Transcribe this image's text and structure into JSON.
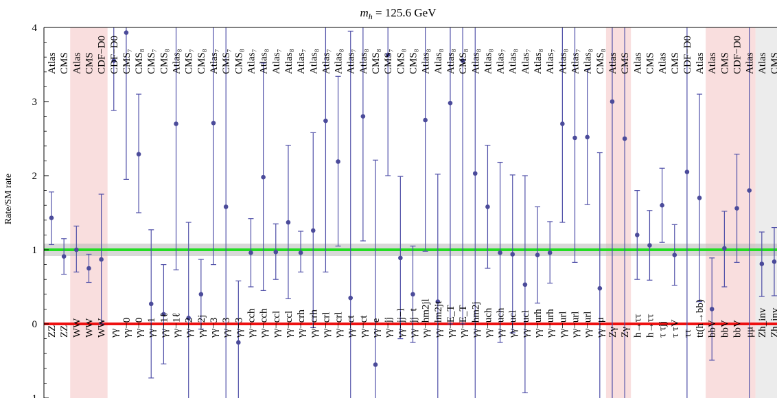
{
  "chart_data": {
    "type": "scatter",
    "title": "m_h = 125.6 GeV",
    "title_parts": {
      "italic": "m",
      "sub": "h",
      "rest": " = 125.6 GeV"
    },
    "ylabel": "Rate/SM rate",
    "ylim": [
      -1,
      4
    ],
    "yticks": [
      -1,
      0,
      1,
      2,
      3,
      4
    ],
    "grid": false,
    "colors": {
      "points": "#4b4b9a",
      "errorbars": "#5050a8",
      "sm_line": "#22dd22",
      "sm_band": "#b8b8b8",
      "zero_line": "#ee1111",
      "shade_pink": "#f9dede",
      "shade_gray": "#ececec"
    },
    "reference_lines": [
      {
        "name": "SM",
        "y": 1
      },
      {
        "name": "zero",
        "y": 0
      }
    ],
    "shaded_groups": [
      {
        "color": "pink",
        "from_index": 2,
        "to_index": 4
      },
      {
        "color": "pink",
        "from_index": 45,
        "to_index": 46
      },
      {
        "color": "pink",
        "from_index": 53,
        "to_index": 56
      },
      {
        "color": "gray",
        "from_index": 57,
        "to_index": 58
      }
    ],
    "points": [
      {
        "top": "Atlas",
        "bottom": "ZZ",
        "y": 1.43,
        "ylo": 1.07,
        "yhi": 1.78
      },
      {
        "top": "CMS",
        "bottom": "ZZ",
        "y": 0.91,
        "ylo": 0.67,
        "yhi": 1.15
      },
      {
        "top": "Atlas",
        "bottom": "WW",
        "y": 1.0,
        "ylo": 0.7,
        "yhi": 1.32
      },
      {
        "top": "CMS",
        "bottom": "WW",
        "y": 0.75,
        "ylo": 0.56,
        "yhi": 0.94
      },
      {
        "top": "CDF−D0",
        "bottom": "WW",
        "y": 0.87,
        "ylo": 0.0,
        "yhi": 1.75
      },
      {
        "top": "CDF−D0",
        "bottom": "γγ",
        "y": 3.55,
        "ylo": 2.88,
        "yhi": 4.2
      },
      {
        "top": "CMS₇",
        "bottom": "γγ−0",
        "y": 3.93,
        "ylo": 1.95,
        "yhi": 5.9
      },
      {
        "top": "CMS₈",
        "bottom": "γγ−0",
        "y": 2.29,
        "ylo": 1.5,
        "yhi": 3.1
      },
      {
        "top": "CMS₇",
        "bottom": "γγ−1",
        "y": 0.27,
        "ylo": -0.73,
        "yhi": 1.27
      },
      {
        "top": "CMS₈",
        "bottom": "γγ−1ℓ",
        "y": 0.13,
        "ylo": -0.54,
        "yhi": 0.8
      },
      {
        "top": "Atlas₈",
        "bottom": "γγ−1ℓ",
        "y": 2.7,
        "ylo": 0.73,
        "yhi": 4.67
      },
      {
        "top": "CMS₇",
        "bottom": "γγ−2",
        "y": 0.08,
        "ylo": -1.2,
        "yhi": 1.37
      },
      {
        "top": "CMS₈",
        "bottom": "γγ−2j",
        "y": 0.4,
        "ylo": -0.07,
        "yhi": 0.87
      },
      {
        "top": "Atlas₇",
        "bottom": "γγ−3",
        "y": 2.71,
        "ylo": 0.8,
        "yhi": 4.6
      },
      {
        "top": "CMS₇",
        "bottom": "γγ−3",
        "y": 1.58,
        "ylo": -1.2,
        "yhi": 4.35
      },
      {
        "top": "CMS₈",
        "bottom": "γγ−3",
        "y": -0.25,
        "ylo": -1.1,
        "yhi": 0.58
      },
      {
        "top": "Atlas₇",
        "bottom": "γγ−cch",
        "y": 0.96,
        "ylo": 0.5,
        "yhi": 1.42
      },
      {
        "top": "Atlas₈",
        "bottom": "γγ−cch",
        "y": 1.98,
        "ylo": 0.45,
        "yhi": 3.52
      },
      {
        "top": "Atlas₇",
        "bottom": "γγ−ccl",
        "y": 0.97,
        "ylo": 0.6,
        "yhi": 1.35
      },
      {
        "top": "Atlas₈",
        "bottom": "γγ−ccl",
        "y": 1.37,
        "ylo": 0.34,
        "yhi": 2.41
      },
      {
        "top": "Atlas₇",
        "bottom": "γγ−crh",
        "y": 0.96,
        "ylo": 0.7,
        "yhi": 1.25
      },
      {
        "top": "Atlas₈",
        "bottom": "γγ−crh",
        "y": 1.26,
        "ylo": -0.05,
        "yhi": 2.58
      },
      {
        "top": "Atlas₇",
        "bottom": "γγ−crl",
        "y": 2.74,
        "ylo": 0.7,
        "yhi": 4.78
      },
      {
        "top": "Atlas₈",
        "bottom": "γγ−crl",
        "y": 2.19,
        "ylo": 1.05,
        "yhi": 3.34
      },
      {
        "top": "Atlas₇",
        "bottom": "γγ−ct",
        "y": 0.35,
        "ylo": -3.3,
        "yhi": 3.95
      },
      {
        "top": "Atlas₈",
        "bottom": "γγ−ct",
        "y": 2.8,
        "ylo": 1.12,
        "yhi": 4.48
      },
      {
        "top": "CMS₈",
        "bottom": "γγ−e",
        "y": -0.55,
        "ylo": -1.5,
        "yhi": 2.21
      },
      {
        "top": "CMS₇",
        "bottom": "γγ−jj",
        "y": 3.63,
        "ylo": 2.0,
        "yhi": 5.24
      },
      {
        "top": "CMS₈",
        "bottom": "γγ−jj−l",
        "y": 0.89,
        "ylo": -0.2,
        "yhi": 1.99
      },
      {
        "top": "CMS₈",
        "bottom": "γγ−jj−t",
        "y": 0.4,
        "ylo": -0.25,
        "yhi": 1.05
      },
      {
        "top": "Atlas₈",
        "bottom": "γγ−hm2jl",
        "y": 2.75,
        "ylo": 0.98,
        "yhi": 4.52
      },
      {
        "top": "Atlas₈",
        "bottom": "γγ−lm2jt",
        "y": 0.3,
        "ylo": -1.4,
        "yhi": 2.02
      },
      {
        "top": "Atlas₈",
        "bottom": "γγ−E_T",
        "y": 2.98,
        "ylo": 0.0,
        "yhi": 5.95
      },
      {
        "top": "CMS₈",
        "bottom": "γγ−E_T",
        "y": 3.55,
        "ylo": 0.0,
        "yhi": 7.1
      },
      {
        "top": "Atlas₈",
        "bottom": "γγ−hm2j",
        "y": 2.03,
        "ylo": -1.3,
        "yhi": 5.35
      },
      {
        "top": "Atlas₈",
        "bottom": "γγ−uch",
        "y": 1.58,
        "ylo": 0.75,
        "yhi": 2.41
      },
      {
        "top": "Atlas₇",
        "bottom": "γγ−uch",
        "y": 0.96,
        "ylo": -0.25,
        "yhi": 2.18
      },
      {
        "top": "Atlas₈",
        "bottom": "γγ−ucl",
        "y": 0.94,
        "ylo": -0.12,
        "yhi": 2.01
      },
      {
        "top": "Atlas₇",
        "bottom": "γγ−ucl",
        "y": 0.53,
        "ylo": -0.93,
        "yhi": 2.0
      },
      {
        "top": "Atlas₈",
        "bottom": "γγ−urh",
        "y": 0.93,
        "ylo": 0.28,
        "yhi": 1.58
      },
      {
        "top": "Atlas₇",
        "bottom": "γγ−urh",
        "y": 0.96,
        "ylo": 0.55,
        "yhi": 1.38
      },
      {
        "top": "Atlas₈",
        "bottom": "γγ−url",
        "y": 2.7,
        "ylo": 1.37,
        "yhi": 4.03
      },
      {
        "top": "Atlas₇",
        "bottom": "γγ−url",
        "y": 2.51,
        "ylo": 0.83,
        "yhi": 4.2
      },
      {
        "top": "Atlas₈",
        "bottom": "γγ−url",
        "y": 2.52,
        "ylo": 1.61,
        "yhi": 3.43
      },
      {
        "top": "CMS₈",
        "bottom": "γγ−μ",
        "y": 0.48,
        "ylo": -1.35,
        "yhi": 2.31
      },
      {
        "top": "Atlas",
        "bottom": "Zγ",
        "y": 3.0,
        "ylo": -4.0,
        "yhi": 10.0
      },
      {
        "top": "CMS",
        "bottom": "Zγ",
        "y": 2.5,
        "ylo": -3.0,
        "yhi": 8.0
      },
      {
        "top": "Atlas",
        "bottom": "h→ττ",
        "y": 1.2,
        "ylo": 0.6,
        "yhi": 1.8
      },
      {
        "top": "CMS",
        "bottom": "h→ττ",
        "y": 1.06,
        "ylo": 0.59,
        "yhi": 1.53
      },
      {
        "top": "Atlas",
        "bottom": "τ τjj",
        "y": 1.6,
        "ylo": 1.1,
        "yhi": 2.1
      },
      {
        "top": "CMS",
        "bottom": "τ τV",
        "y": 0.93,
        "ylo": 0.52,
        "yhi": 1.34
      },
      {
        "top": "CDF−D0",
        "bottom": "ττ",
        "y": 2.05,
        "ylo": -2.0,
        "yhi": 6.0
      },
      {
        "top": "Atlas",
        "bottom": "tt(h→bb)",
        "y": 1.7,
        "ylo": 0.3,
        "yhi": 3.1
      },
      {
        "top": "Atlas",
        "bottom": "bbV",
        "y": 0.2,
        "ylo": -0.49,
        "yhi": 0.89
      },
      {
        "top": "CMS",
        "bottom": "bbV",
        "y": 1.02,
        "ylo": 0.5,
        "yhi": 1.52
      },
      {
        "top": "CDF−D0",
        "bottom": "bbV",
        "y": 1.56,
        "ylo": 0.83,
        "yhi": 2.29
      },
      {
        "top": "Atlas",
        "bottom": "μμ",
        "y": 1.8,
        "ylo": -5.0,
        "yhi": 9.0
      },
      {
        "top": "Atlas",
        "bottom": "Zh_inv",
        "y": 0.81,
        "ylo": 0.37,
        "yhi": 1.24
      },
      {
        "top": "CMS",
        "bottom": "Zh_inv",
        "y": 0.84,
        "ylo": 0.38,
        "yhi": 1.3
      }
    ]
  }
}
